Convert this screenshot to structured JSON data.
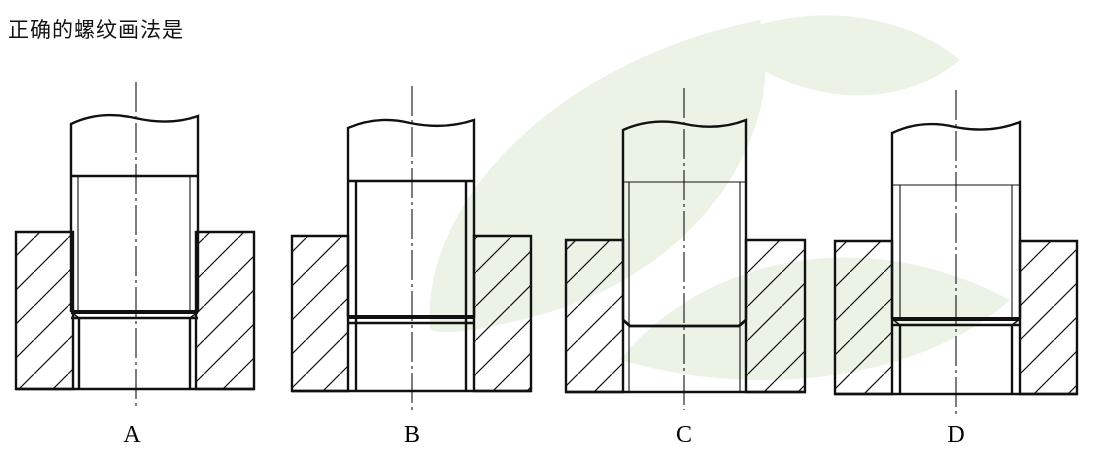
{
  "question": "正确的螺纹画法是",
  "options": [
    "A",
    "B",
    "C",
    "D"
  ],
  "colors": {
    "line": "#111111",
    "watermark": "#eaf3e6"
  }
}
